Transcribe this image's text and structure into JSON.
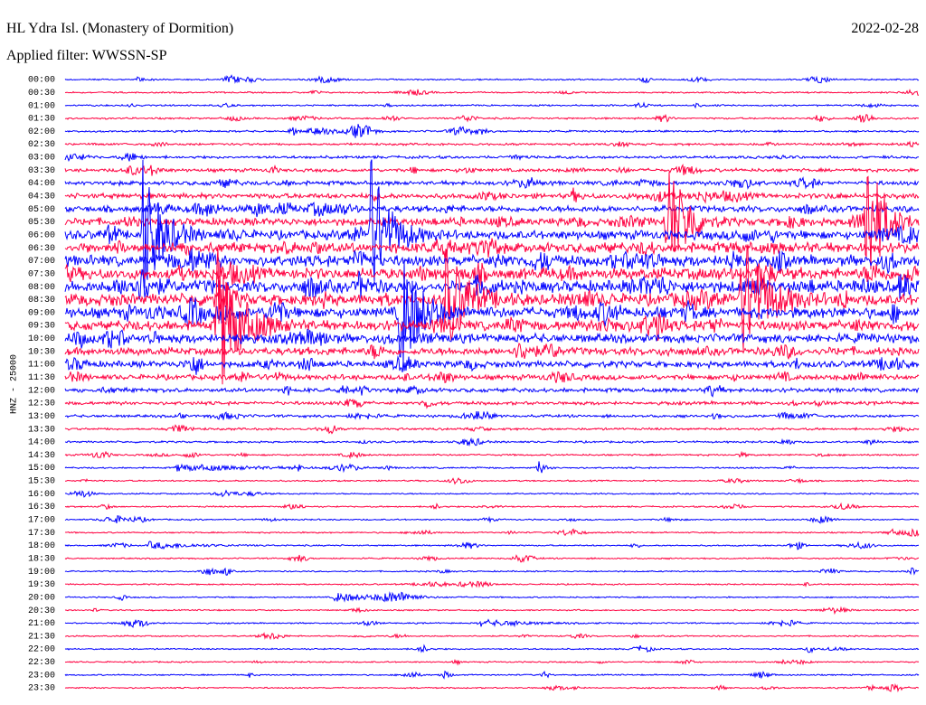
{
  "header": {
    "station": "HL Ydra Isl. (Monastery of Dormition)",
    "date": "2022-02-28",
    "filter": "Applied filter: WWSSN-SP"
  },
  "axis_label": "HNZ - 25000",
  "trace_colors": [
    "#0000ff",
    "#ff0040"
  ],
  "rows": [
    "00:00",
    "00:30",
    "01:00",
    "01:30",
    "02:00",
    "02:30",
    "03:00",
    "03:30",
    "04:00",
    "04:30",
    "05:00",
    "05:30",
    "06:00",
    "06:30",
    "07:00",
    "07:30",
    "08:00",
    "08:30",
    "09:00",
    "09:30",
    "10:00",
    "10:30",
    "11:00",
    "11:30",
    "12:00",
    "12:30",
    "13:00",
    "13:30",
    "14:00",
    "14:30",
    "15:00",
    "15:30",
    "16:00",
    "16:30",
    "17:00",
    "17:30",
    "18:00",
    "18:30",
    "19:00",
    "19:30",
    "20:00",
    "20:30",
    "21:00",
    "21:30",
    "22:00",
    "22:30",
    "23:00",
    "23:30"
  ]
}
